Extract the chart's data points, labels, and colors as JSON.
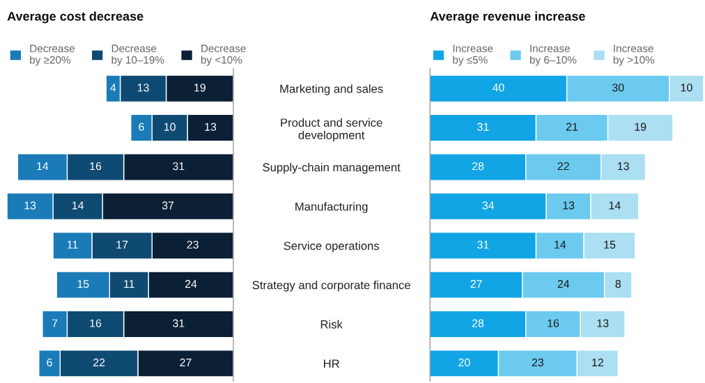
{
  "chart_data": [
    {
      "type": "bar",
      "orientation": "horizontal",
      "stacked": true,
      "title": "Average cost decrease",
      "categories": [
        "Marketing and sales",
        "Product and service\ndevelopment",
        "Supply-chain management",
        "Manufacturing",
        "Service operations",
        "Strategy and corporate finance",
        "Risk",
        "HR"
      ],
      "xlim": [
        64,
        0
      ],
      "tick_labels": false,
      "data_labels": true,
      "legend": "top left",
      "grid": false,
      "series": [
        {
          "name": "Decrease\nby <10%",
          "color": "#0b1f35",
          "values": [
            19,
            13,
            31,
            37,
            23,
            24,
            31,
            27
          ]
        },
        {
          "name": "Decrease\nby 10–19%",
          "color": "#0f4a72",
          "values": [
            13,
            10,
            16,
            14,
            17,
            11,
            16,
            22
          ]
        },
        {
          "name": "Decrease\nby ≥20%",
          "color": "#1a7bb8",
          "values": [
            4,
            6,
            14,
            13,
            11,
            15,
            7,
            6
          ]
        }
      ]
    },
    {
      "type": "bar",
      "orientation": "horizontal",
      "stacked": true,
      "title": "Average revenue increase",
      "categories": [
        "Marketing and sales",
        "Product and service\ndevelopment",
        "Supply-chain management",
        "Manufacturing",
        "Service operations",
        "Strategy and corporate finance",
        "Risk",
        "HR"
      ],
      "xlim": [
        0,
        80
      ],
      "tick_labels": "y",
      "data_labels": true,
      "legend": "top left",
      "grid": false,
      "series": [
        {
          "name": "Increase\nby ≤5%",
          "color": "#12a5e6",
          "values": [
            40,
            31,
            28,
            34,
            31,
            27,
            28,
            20
          ]
        },
        {
          "name": "Increase\nby 6–10%",
          "color": "#6ccaef",
          "values": [
            30,
            21,
            22,
            13,
            14,
            24,
            16,
            23
          ]
        },
        {
          "name": "Increase\nby >10%",
          "color": "#abdff1",
          "values": [
            10,
            19,
            13,
            14,
            15,
            8,
            13,
            12
          ]
        }
      ]
    }
  ]
}
